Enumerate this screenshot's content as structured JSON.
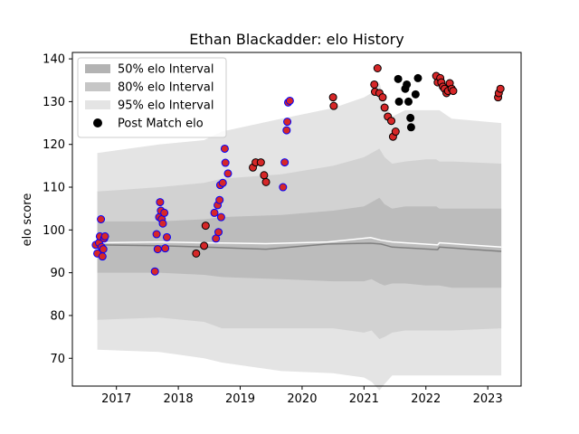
{
  "chart_data": {
    "type": "scatter",
    "title": "Ethan Blackadder: elo History",
    "xlabel": "",
    "ylabel": "elo score",
    "xlim": [
      "2016-04-15",
      "2023-07-15"
    ],
    "ylim": [
      63.5,
      141.5
    ],
    "x_ticks": [
      "2017",
      "2018",
      "2019",
      "2020",
      "2021",
      "2022",
      "2023"
    ],
    "y_ticks": [
      70,
      80,
      90,
      100,
      110,
      120,
      130,
      140
    ],
    "legend_position": "upper left",
    "legend": [
      {
        "label": "50% elo Interval",
        "color": "#b3b3b3"
      },
      {
        "label": "80% elo Interval",
        "color": "#c6c6c6"
      },
      {
        "label": "95% elo Interval",
        "color": "#e4e4e4"
      },
      {
        "label": "Post Match elo",
        "color": "#000000"
      }
    ],
    "intervals": {
      "x": [
        "2016-09-10",
        "2017-09-10",
        "2018-06-01",
        "2018-09-15",
        "2019-09-01",
        "2020-07-01",
        "2021-01-01",
        "2021-02-15",
        "2021-04-01",
        "2021-05-01",
        "2021-06-15",
        "2021-09-01",
        "2022-01-01",
        "2022-03-01",
        "2022-03-20",
        "2022-06-01",
        "2023-03-20"
      ],
      "p95_upper": [
        118,
        120,
        121,
        123,
        126,
        128.5,
        131,
        132,
        134.5,
        130,
        126.5,
        128,
        128,
        128,
        128,
        126,
        125
      ],
      "p80_upper": [
        109,
        110,
        111,
        112,
        113,
        115,
        117,
        118,
        119,
        117,
        115.5,
        116,
        116.5,
        116.5,
        116,
        116,
        115.5
      ],
      "p50_upper": [
        102,
        102,
        102.5,
        103,
        103.5,
        104.5,
        105.5,
        106.5,
        107.5,
        106,
        105,
        105.5,
        105.5,
        105.5,
        105,
        105,
        105
      ],
      "center": [
        96.5,
        96.5,
        96.5,
        96,
        95.5,
        96.5,
        97,
        97.5,
        97,
        96.5,
        96,
        96,
        95.5,
        95.5,
        96,
        95.5,
        95
      ],
      "p50_lower": [
        90,
        90,
        89.5,
        89,
        88.5,
        88,
        88,
        88.5,
        87.5,
        87,
        87.5,
        87.5,
        87,
        87,
        87,
        86.5,
        86.5
      ],
      "p80_lower": [
        79,
        79.5,
        78.5,
        77,
        77,
        77,
        76,
        76.5,
        74.5,
        75,
        76,
        76.5,
        76.5,
        76.5,
        76.5,
        76.5,
        77
      ],
      "p95_lower": [
        72,
        71.5,
        70,
        69,
        67,
        66.5,
        65.5,
        64.5,
        62.5,
        64,
        66,
        66,
        66,
        66,
        66,
        66,
        66
      ]
    },
    "mean_line": {
      "x": [
        "2016-09-10",
        "2017-09-10",
        "2018-06-01",
        "2019-06-01",
        "2020-06-01",
        "2021-02-10",
        "2021-04-10",
        "2021-06-15",
        "2022-03-10",
        "2022-03-20",
        "2023-03-20"
      ],
      "y": [
        97,
        97.2,
        97,
        96.8,
        97.2,
        98.2,
        97.6,
        97.2,
        96.5,
        97,
        96
      ]
    },
    "median_line": {
      "x": [
        "2016-09-10",
        "2017-09-10",
        "2018-06-01",
        "2019-06-01",
        "2020-06-01",
        "2021-02-10",
        "2021-04-10",
        "2021-06-15",
        "2022-03-10",
        "2022-03-20",
        "2023-03-20"
      ],
      "y": [
        96.5,
        96.3,
        96,
        95.5,
        96.7,
        96.9,
        96.7,
        96,
        95.4,
        96,
        95
      ]
    },
    "points_blue_edge": [
      {
        "x": "2016-09-01",
        "y": 96.5
      },
      {
        "x": "2016-09-10",
        "y": 94.5
      },
      {
        "x": "2016-09-20",
        "y": 97
      },
      {
        "x": "2016-09-25",
        "y": 98.5
      },
      {
        "x": "2016-10-01",
        "y": 102.5
      },
      {
        "x": "2016-10-05",
        "y": 96
      },
      {
        "x": "2016-10-10",
        "y": 93.8
      },
      {
        "x": "2016-10-15",
        "y": 95.5
      },
      {
        "x": "2016-10-20",
        "y": 98
      },
      {
        "x": "2016-10-25",
        "y": 98.5
      },
      {
        "x": "2017-08-15",
        "y": 90.3
      },
      {
        "x": "2017-08-25",
        "y": 99
      },
      {
        "x": "2017-09-01",
        "y": 95.5
      },
      {
        "x": "2017-09-10",
        "y": 103
      },
      {
        "x": "2017-09-15",
        "y": 106.5
      },
      {
        "x": "2017-09-20",
        "y": 104.5
      },
      {
        "x": "2017-09-25",
        "y": 102.5
      },
      {
        "x": "2017-10-01",
        "y": 101.5
      },
      {
        "x": "2017-10-10",
        "y": 104
      },
      {
        "x": "2017-10-15",
        "y": 95.7
      },
      {
        "x": "2017-10-25",
        "y": 98.3
      },
      {
        "x": "2018-08-01",
        "y": 104
      },
      {
        "x": "2018-08-10",
        "y": 98
      },
      {
        "x": "2018-08-20",
        "y": 105.8
      },
      {
        "x": "2018-08-25",
        "y": 99.5
      },
      {
        "x": "2018-09-01",
        "y": 107
      },
      {
        "x": "2018-09-05",
        "y": 110.5
      },
      {
        "x": "2018-09-10",
        "y": 103
      },
      {
        "x": "2018-09-20",
        "y": 111
      },
      {
        "x": "2018-10-01",
        "y": 119
      },
      {
        "x": "2018-10-05",
        "y": 115.7
      },
      {
        "x": "2018-10-20",
        "y": 113.2
      },
      {
        "x": "2019-09-10",
        "y": 110
      },
      {
        "x": "2019-09-20",
        "y": 115.8
      },
      {
        "x": "2019-10-01",
        "y": 123.3
      },
      {
        "x": "2019-10-05",
        "y": 125.3
      },
      {
        "x": "2019-10-10",
        "y": 129.8
      },
      {
        "x": "2019-10-20",
        "y": 130.2
      }
    ],
    "points_black_edge": [
      {
        "x": "2018-04-15",
        "y": 94.5
      },
      {
        "x": "2018-06-01",
        "y": 96.3
      },
      {
        "x": "2018-06-10",
        "y": 101
      },
      {
        "x": "2019-03-15",
        "y": 114.6
      },
      {
        "x": "2019-04-01",
        "y": 115.8
      },
      {
        "x": "2019-05-01",
        "y": 115.8
      },
      {
        "x": "2019-05-20",
        "y": 112.8
      },
      {
        "x": "2019-06-01",
        "y": 111.2
      },
      {
        "x": "2020-07-01",
        "y": 131
      },
      {
        "x": "2020-07-05",
        "y": 129
      },
      {
        "x": "2021-03-01",
        "y": 134
      },
      {
        "x": "2021-03-05",
        "y": 132.3
      },
      {
        "x": "2021-03-20",
        "y": 137.8
      },
      {
        "x": "2021-04-01",
        "y": 132
      },
      {
        "x": "2021-04-20",
        "y": 131
      },
      {
        "x": "2021-05-01",
        "y": 128.6
      },
      {
        "x": "2021-05-20",
        "y": 126.5
      },
      {
        "x": "2021-06-10",
        "y": 125.5
      },
      {
        "x": "2021-06-20",
        "y": 121.8
      },
      {
        "x": "2021-07-05",
        "y": 123
      },
      {
        "x": "2022-03-01",
        "y": 136
      },
      {
        "x": "2022-03-10",
        "y": 134.5
      },
      {
        "x": "2022-03-25",
        "y": 135.5
      },
      {
        "x": "2022-04-01",
        "y": 134.5
      },
      {
        "x": "2022-04-10",
        "y": 133.5
      },
      {
        "x": "2022-04-20",
        "y": 133
      },
      {
        "x": "2022-05-01",
        "y": 132
      },
      {
        "x": "2022-05-10",
        "y": 132.5
      },
      {
        "x": "2022-05-20",
        "y": 134.3
      },
      {
        "x": "2022-06-01",
        "y": 133
      },
      {
        "x": "2022-06-10",
        "y": 132.5
      },
      {
        "x": "2023-03-01",
        "y": 131
      },
      {
        "x": "2023-03-05",
        "y": 132
      },
      {
        "x": "2023-03-15",
        "y": 133
      }
    ],
    "points_post_match": [
      {
        "x": "2021-07-20",
        "y": 135.3
      },
      {
        "x": "2021-07-25",
        "y": 130
      },
      {
        "x": "2021-09-01",
        "y": 133
      },
      {
        "x": "2021-09-10",
        "y": 134
      },
      {
        "x": "2021-09-20",
        "y": 130
      },
      {
        "x": "2021-10-01",
        "y": 126.2
      },
      {
        "x": "2021-10-05",
        "y": 124
      },
      {
        "x": "2021-11-01",
        "y": 131.7
      },
      {
        "x": "2021-11-15",
        "y": 135.5
      }
    ],
    "colors": {
      "band_95": "#e4e4e4",
      "band_80": "#d2d2d2",
      "band_50": "#bcbcbc",
      "median_line": "#808080",
      "mean_line": "#ffffff",
      "point_red_fill": "#d62728",
      "point_blue_edge": "#0000ff",
      "point_black_edge": "#000000",
      "point_post_match": "#000000"
    }
  }
}
